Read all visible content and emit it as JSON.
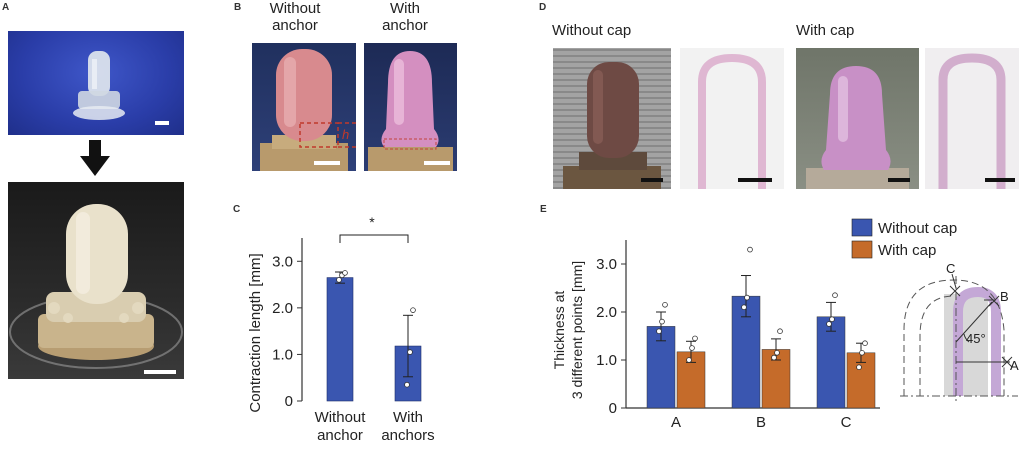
{
  "panels": {
    "a": "A",
    "b": "B",
    "c": "C",
    "d": "D",
    "e": "E"
  },
  "panel_b": {
    "label_left": "Without anchor",
    "label_left_l1": "Without",
    "label_left_l2": "anchor",
    "label_right_l1": "With",
    "label_right_l2": "anchor",
    "annotation": "h"
  },
  "panel_d": {
    "label_left": "Without cap",
    "label_right": "With cap"
  },
  "colors": {
    "blue": "#3a56b0",
    "orange": "#c56b2a",
    "annotation_red": "#c0392b"
  },
  "chart_data": [
    {
      "type": "bar",
      "ylabel": "Contraction length  [mm]",
      "categories": [
        "Without anchor",
        "With anchors"
      ],
      "category_lines": [
        [
          "Without",
          "anchor"
        ],
        [
          "With",
          "anchors"
        ]
      ],
      "values": [
        2.65,
        1.18
      ],
      "errors": [
        0.12,
        0.66
      ],
      "points": [
        [
          2.6,
          2.7,
          2.75
        ],
        [
          0.35,
          1.05,
          1.95
        ]
      ],
      "ylim": [
        0,
        3.5
      ],
      "yticks": [
        0,
        1.0,
        2.0,
        3.0
      ],
      "ytick_labels": [
        "0",
        "1.0",
        "2.0",
        "3.0"
      ],
      "significance": "*",
      "color": "#3a56b0"
    },
    {
      "type": "bar",
      "ylabel_l1": "Thickness at",
      "ylabel_l2": "3 different points [mm]",
      "categories": [
        "A",
        "B",
        "C"
      ],
      "series": [
        {
          "name": "Without cap",
          "color": "#3a56b0",
          "values": [
            1.7,
            2.33,
            1.9
          ],
          "errors": [
            0.3,
            0.43,
            0.3
          ],
          "points": [
            [
              1.6,
              1.8,
              2.15
            ],
            [
              2.1,
              2.3,
              3.3
            ],
            [
              1.75,
              1.85,
              2.35
            ]
          ]
        },
        {
          "name": "With cap",
          "color": "#c56b2a",
          "values": [
            1.17,
            1.22,
            1.15
          ],
          "errors": [
            0.22,
            0.22,
            0.2
          ],
          "points": [
            [
              1.0,
              1.25,
              1.45
            ],
            [
              1.05,
              1.15,
              1.6
            ],
            [
              0.85,
              1.15,
              1.35
            ]
          ]
        }
      ],
      "ylim": [
        0,
        3.5
      ],
      "yticks": [
        0,
        1.0,
        2.0,
        3.0
      ],
      "ytick_labels": [
        "0",
        "1.0",
        "2.0",
        "3.0"
      ],
      "legend": "top-right",
      "schematic": {
        "point_top": "C",
        "point_mid": "B",
        "point_side": "A",
        "angle": "45°"
      }
    }
  ]
}
